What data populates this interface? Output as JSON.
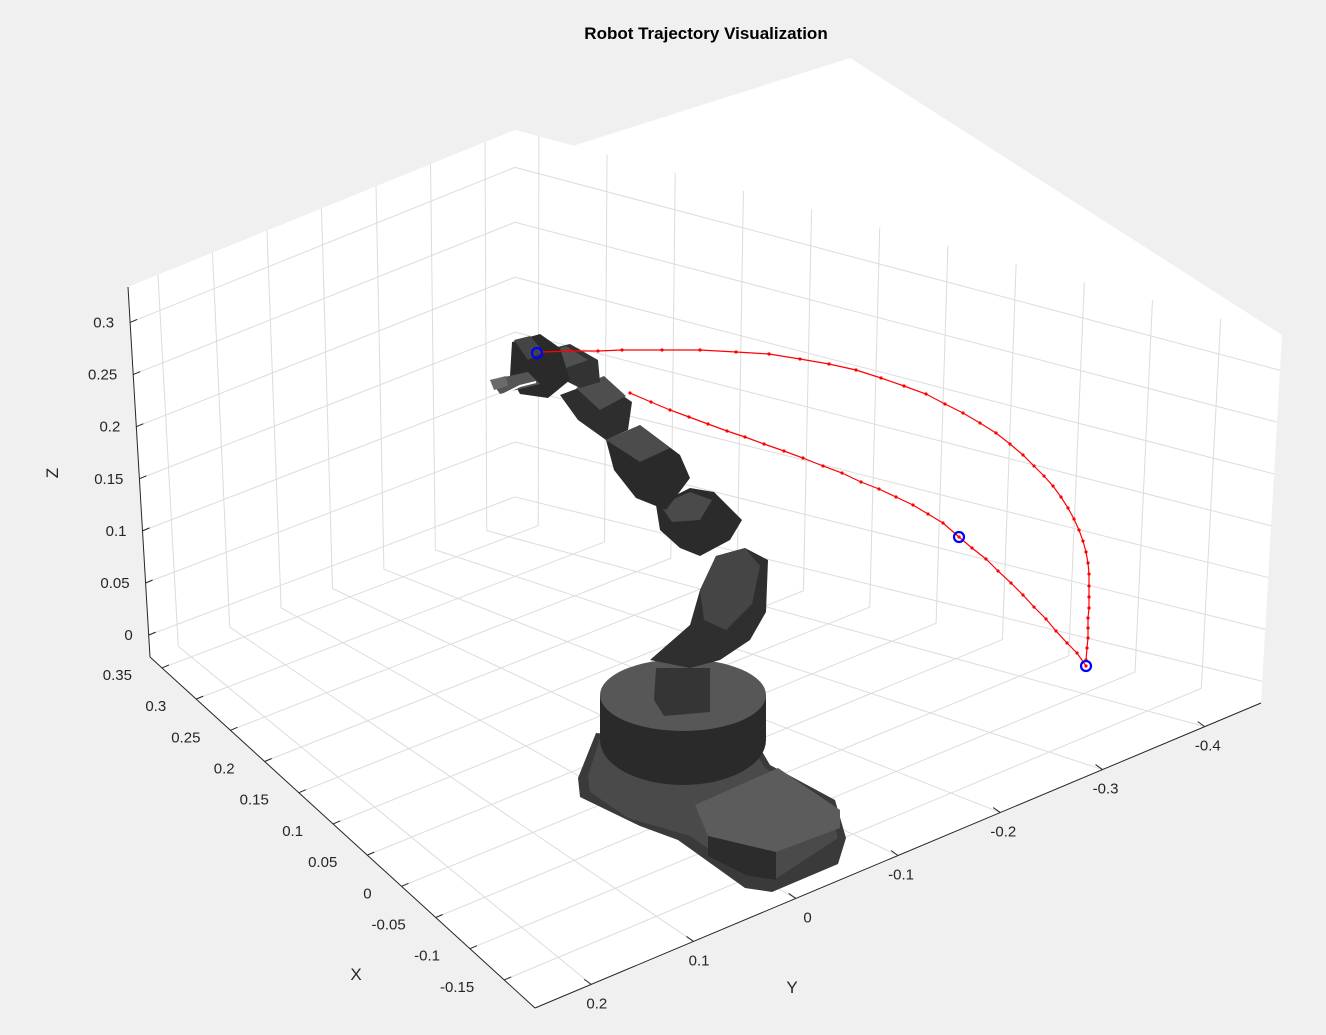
{
  "chart_data": {
    "type": "scatter",
    "title": "Robot Trajectory Visualization",
    "xlabel": "X",
    "ylabel": "Y",
    "zlabel": "Z",
    "grid": true,
    "x_ticks": [
      "0.35",
      "0.3",
      "0.25",
      "0.2",
      "0.15",
      "0.1",
      "0.05",
      "0",
      "-0.05",
      "-0.1",
      "-0.15"
    ],
    "y_ticks": [
      "0.2",
      "0.1",
      "0",
      "-0.1",
      "-0.2",
      "-0.3",
      "-0.4"
    ],
    "z_ticks": [
      "0.3",
      "0.25",
      "0.2",
      "0.15",
      "0.1",
      "0.05",
      "0"
    ],
    "series": [
      {
        "color": "#ff0000",
        "marker": "dot",
        "points": [
          [
            542,
            352
          ],
          [
            570,
            351
          ],
          [
            598,
            351
          ],
          [
            622,
            350
          ],
          [
            662,
            350
          ],
          [
            700,
            350
          ],
          [
            736,
            352
          ],
          [
            769,
            354
          ],
          [
            800,
            359
          ],
          [
            829,
            364
          ],
          [
            856,
            370
          ],
          [
            881,
            378
          ],
          [
            904,
            386
          ],
          [
            926,
            394
          ],
          [
            945,
            404
          ],
          [
            963,
            413
          ],
          [
            980,
            423
          ],
          [
            996,
            433
          ],
          [
            1010,
            444
          ],
          [
            1023,
            455
          ],
          [
            1034,
            466
          ],
          [
            1044,
            476
          ],
          [
            1053,
            486
          ],
          [
            1061,
            497
          ],
          [
            1068,
            508
          ],
          [
            1074,
            519
          ],
          [
            1079,
            530
          ],
          [
            1083,
            541
          ],
          [
            1086,
            552
          ],
          [
            1088,
            563
          ],
          [
            1089,
            574
          ],
          [
            1089,
            586
          ],
          [
            1089,
            597
          ],
          [
            1089,
            608
          ],
          [
            1088,
            618
          ],
          [
            1088,
            628
          ],
          [
            1088,
            638
          ],
          [
            1087,
            648
          ],
          [
            1086,
            660
          ]
        ]
      },
      {
        "color": "#ff0000",
        "marker": "dot",
        "points": [
          [
            630,
            393
          ],
          [
            651,
            402
          ],
          [
            670,
            410
          ],
          [
            689,
            417
          ],
          [
            708,
            424
          ],
          [
            727,
            431
          ],
          [
            745,
            437
          ],
          [
            764,
            444
          ],
          [
            784,
            451
          ],
          [
            803,
            458
          ],
          [
            823,
            466
          ],
          [
            842,
            473
          ],
          [
            861,
            482
          ],
          [
            879,
            489
          ],
          [
            896,
            497
          ],
          [
            913,
            505
          ],
          [
            928,
            514
          ],
          [
            943,
            523
          ],
          [
            959,
            537
          ],
          [
            972,
            548
          ],
          [
            986,
            559
          ],
          [
            998,
            571
          ],
          [
            1011,
            583
          ],
          [
            1023,
            595
          ],
          [
            1034,
            607
          ],
          [
            1046,
            619
          ],
          [
            1056,
            631
          ],
          [
            1067,
            643
          ],
          [
            1077,
            653
          ],
          [
            1086,
            666
          ]
        ]
      }
    ],
    "waypoints": [
      [
        537,
        353
      ],
      [
        959,
        537
      ],
      [
        1086,
        666
      ]
    ],
    "waypoint_color": "#0000ff"
  }
}
